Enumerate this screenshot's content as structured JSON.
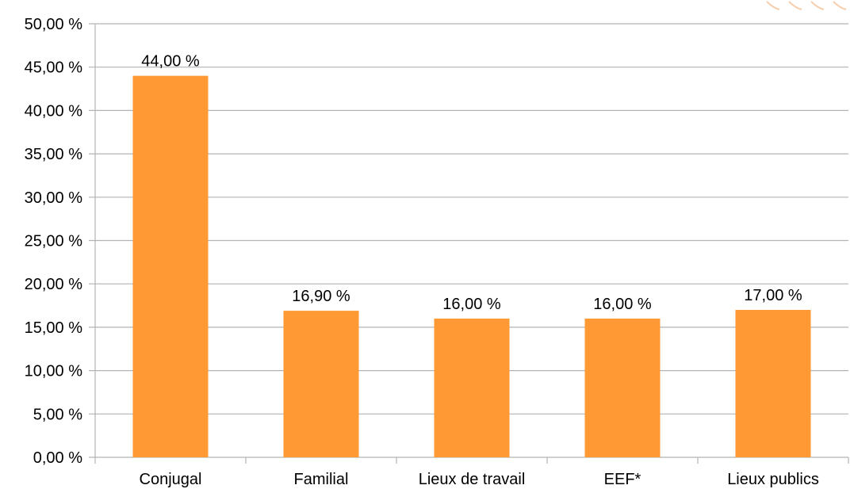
{
  "chart_data": {
    "type": "bar",
    "categories": [
      "Conjugal",
      "Familial",
      "Lieux de travail",
      "EEF*",
      "Lieux publics"
    ],
    "values": [
      44.0,
      16.9,
      16.0,
      16.0,
      17.0
    ],
    "value_labels": [
      "44,00 %",
      "16,90 %",
      "16,00 %",
      "16,00 %",
      "17,00 %"
    ],
    "ylim": [
      0,
      50
    ],
    "ytick_step": 5,
    "ytick_labels": [
      "0,00 %",
      "5,00 %",
      "10,00 %",
      "15,00 %",
      "20,00 %",
      "25,00 %",
      "30,00 %",
      "35,00 %",
      "40,00 %",
      "45,00 %",
      "50,00 %"
    ],
    "title": "",
    "xlabel": "",
    "ylabel": "",
    "grid": true,
    "legend": false,
    "colors": {
      "bar": "#ff9933",
      "grid": "#b3b3b3",
      "axis": "#b3b3b3",
      "text": "#000000"
    }
  }
}
